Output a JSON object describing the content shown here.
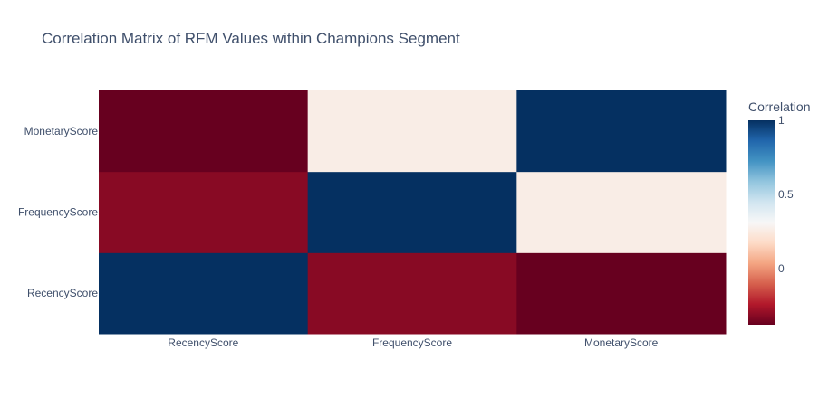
{
  "chart_data": {
    "type": "heatmap",
    "title": "Correlation Matrix of RFM Values within Champions Segment",
    "x_categories": [
      "RecencyScore",
      "FrequencyScore",
      "MonetaryScore"
    ],
    "y_categories": [
      "RecencyScore",
      "FrequencyScore",
      "MonetaryScore"
    ],
    "z": [
      [
        1.0,
        -0.32,
        -0.38
      ],
      [
        -0.32,
        1.0,
        0.26
      ],
      [
        -0.38,
        0.26,
        1.0
      ]
    ],
    "colorbar": {
      "title": "Correlation",
      "range": [
        -0.38,
        1.0
      ],
      "tickvals": [
        0,
        0.5,
        1
      ],
      "ticklabels": [
        "0",
        "0.5",
        "1"
      ]
    },
    "colorscale": [
      [
        0.0,
        "#67001f"
      ],
      [
        0.1,
        "#b2182b"
      ],
      [
        0.2,
        "#d6604d"
      ],
      [
        0.3,
        "#f4a582"
      ],
      [
        0.4,
        "#fddbc7"
      ],
      [
        0.5,
        "#f7f7f7"
      ],
      [
        0.6,
        "#d1e5f0"
      ],
      [
        0.7,
        "#92c5de"
      ],
      [
        0.8,
        "#4393c3"
      ],
      [
        0.9,
        "#2166ac"
      ],
      [
        1.0,
        "#053061"
      ]
    ]
  }
}
